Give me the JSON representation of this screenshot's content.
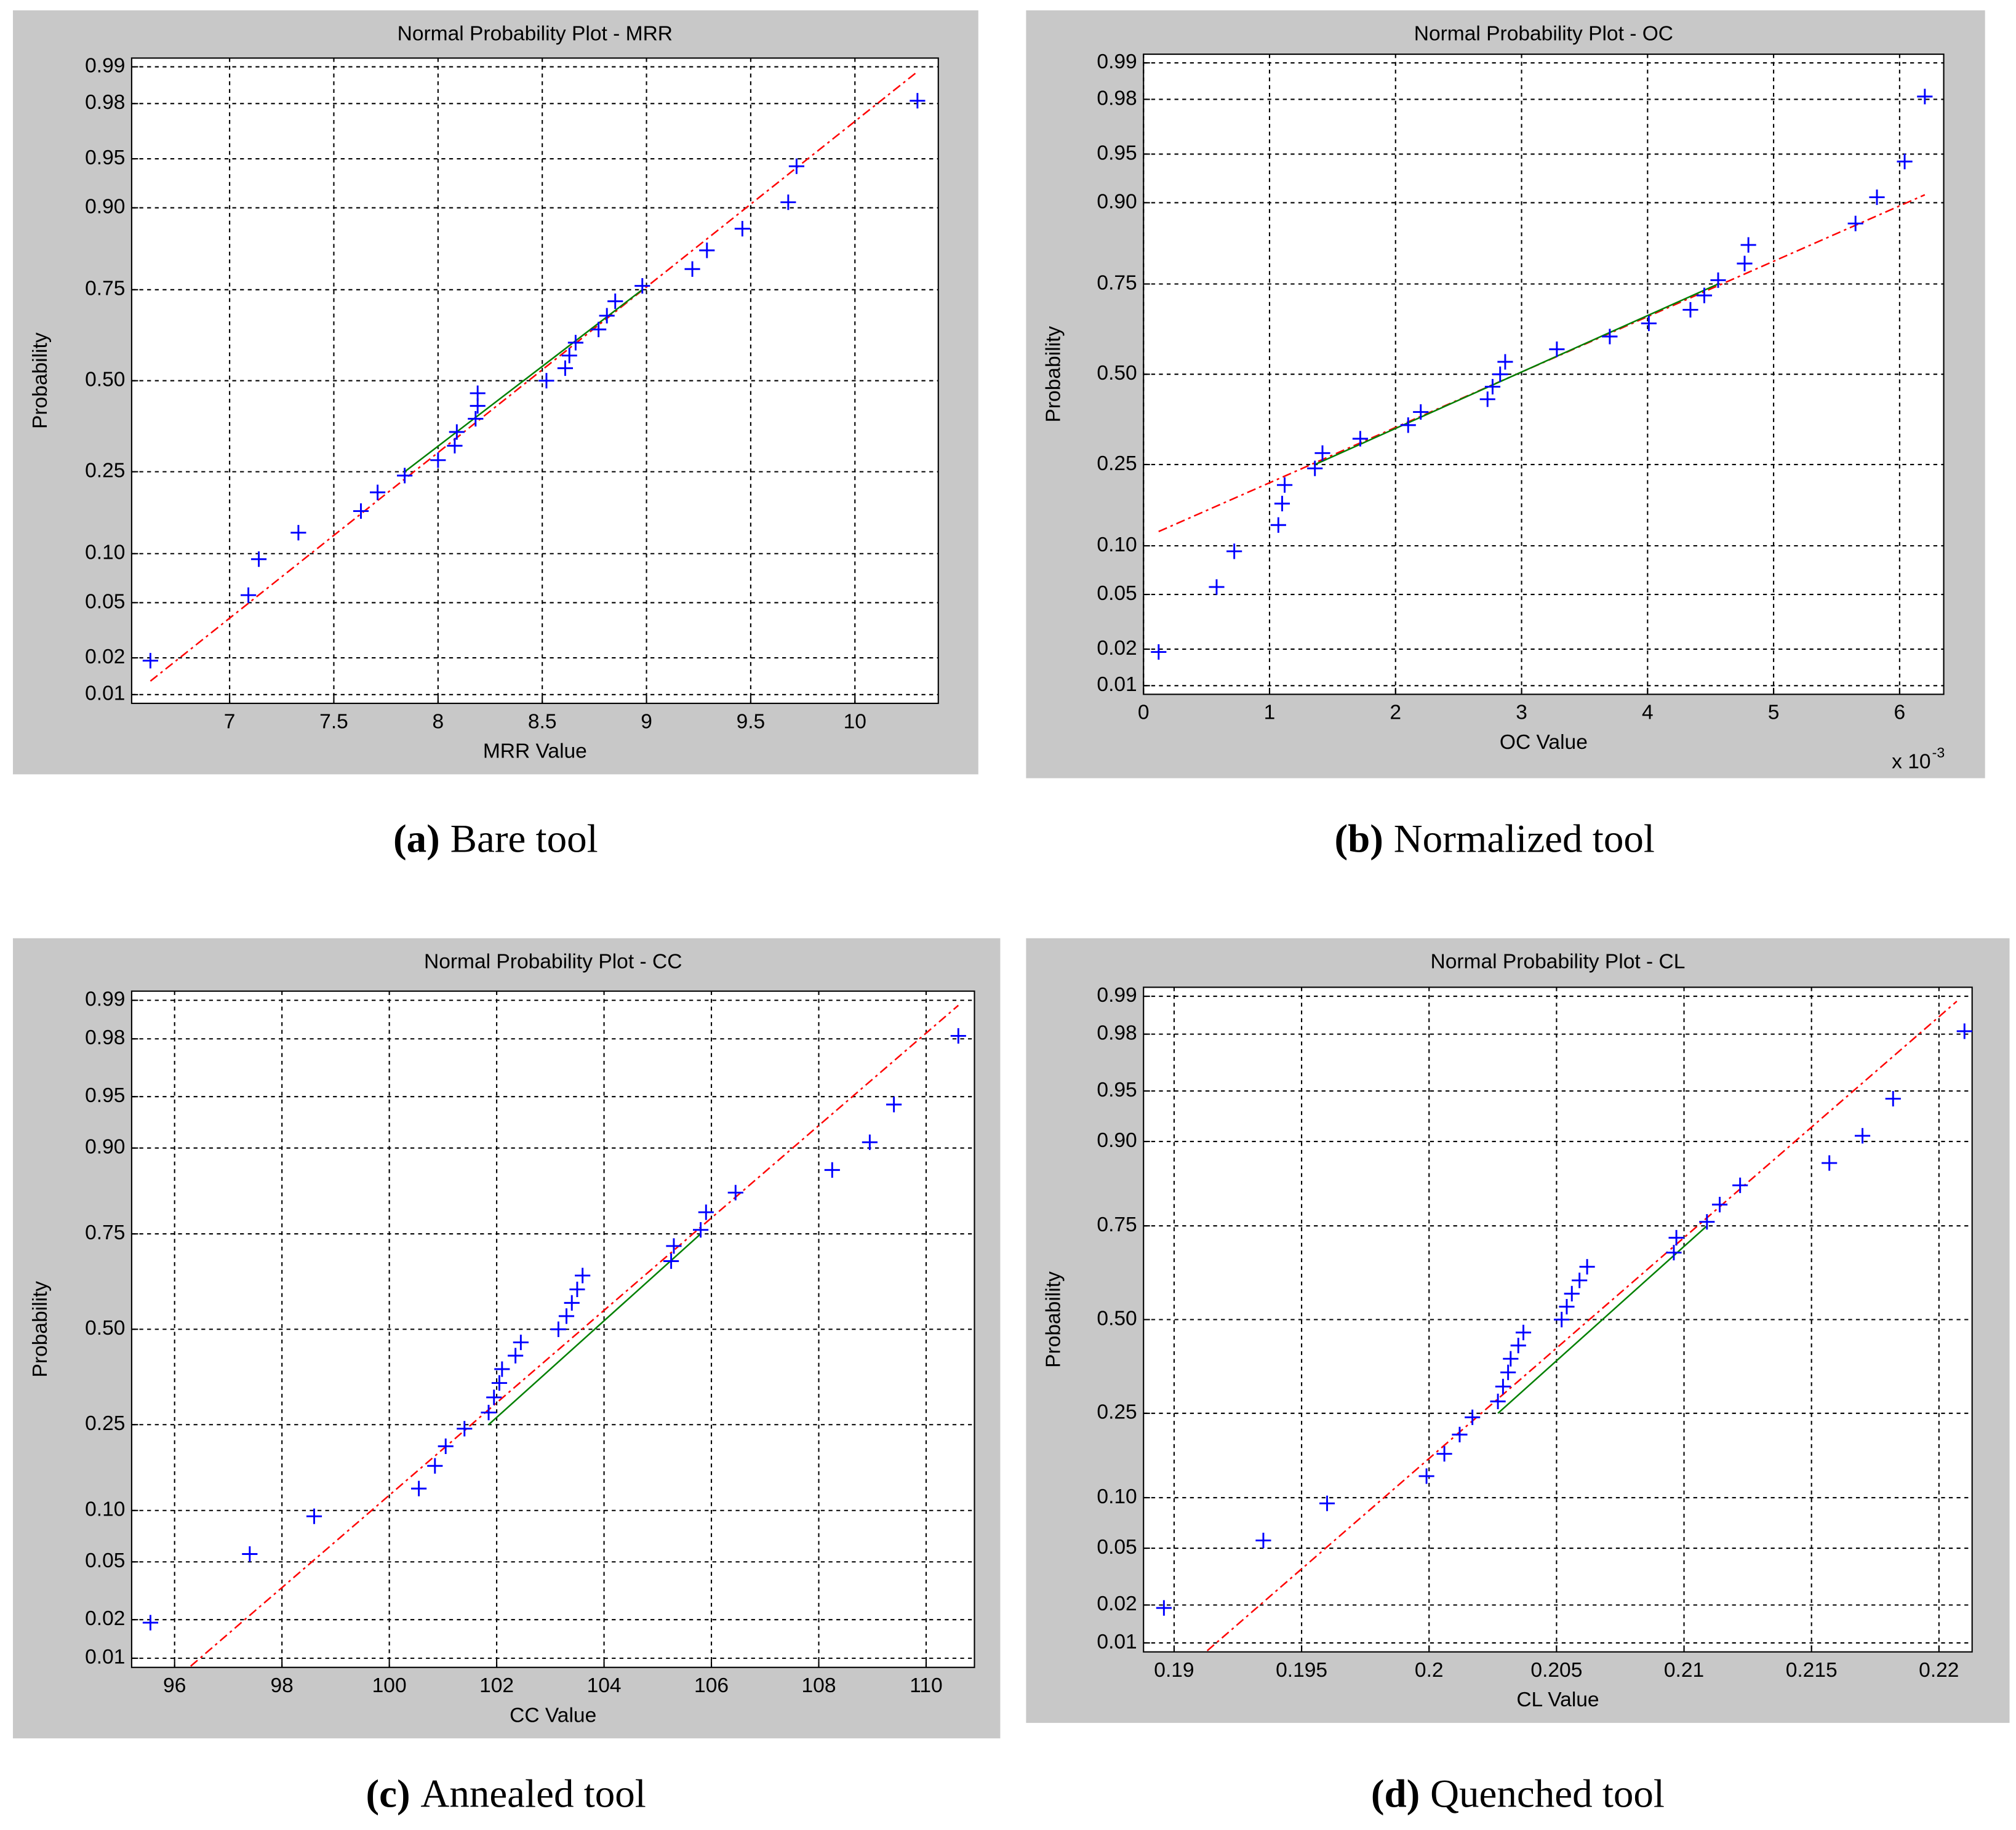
{
  "chart_data": [
    {
      "type": "probability",
      "title": "Normal Probability Plot - MRR",
      "xlabel": "MRR Value",
      "ylabel": "Probability",
      "caption_label": "(a)",
      "caption": "Bare tool",
      "x": [
        6.62,
        7.09,
        7.14,
        7.33,
        7.63,
        7.71,
        7.84,
        8.0,
        8.08,
        8.09,
        8.18,
        8.19,
        8.19,
        8.52,
        8.61,
        8.63,
        8.66,
        8.77,
        8.81,
        8.85,
        8.98,
        9.22,
        9.29,
        9.46,
        9.68,
        9.72,
        10.3
      ],
      "values": [
        0.019,
        0.056,
        0.093,
        0.13,
        0.167,
        0.204,
        0.241,
        0.278,
        0.315,
        0.352,
        0.389,
        0.426,
        0.463,
        0.5,
        0.537,
        0.574,
        0.611,
        0.648,
        0.685,
        0.722,
        0.759,
        0.796,
        0.833,
        0.87,
        0.907,
        0.944,
        0.981
      ],
      "color": "#0000ff",
      "reference_line": {
        "x": [
          6.62,
          10.3
        ],
        "values": [
          0.013,
          0.989
        ],
        "color": "#ff0000"
      },
      "quartile_line": {
        "x": [
          7.84,
          8.98
        ],
        "values": [
          0.25,
          0.75
        ],
        "color": "#008000"
      },
      "xlim": [
        6.53,
        10.4
      ],
      "xticks": [
        7,
        7.5,
        8,
        8.5,
        9,
        9.5,
        10
      ],
      "yscale": "normal",
      "ylim": [
        0.0084,
        0.9916
      ],
      "yticks": [
        0.01,
        0.02,
        0.05,
        {
          "value": 0.1,
          "label": "0.10"
        },
        0.25,
        {
          "value": 0.5,
          "label": "0.50"
        },
        0.75,
        {
          "value": 0.9,
          "label": "0.90"
        },
        0.95,
        0.98,
        0.99
      ],
      "grid": true
    },
    {
      "type": "probability",
      "title": "Normal Probability Plot - OC",
      "xlabel": "OC Value",
      "ylabel": "Probability",
      "caption_label": "(b)",
      "caption": "Normalized tool",
      "x_scale_label": "x 10",
      "x_scale_exponent": "-3",
      "x": [
        0.12,
        0.58,
        0.72,
        1.07,
        1.1,
        1.12,
        1.36,
        1.42,
        1.72,
        2.1,
        2.2,
        2.73,
        2.77,
        2.83,
        2.87,
        3.28,
        3.7,
        4.01,
        4.34,
        4.45,
        4.56,
        4.77,
        4.8,
        5.65,
        5.82,
        6.04,
        6.2
      ],
      "values": [
        0.019,
        0.056,
        0.093,
        0.13,
        0.167,
        0.204,
        0.241,
        0.278,
        0.315,
        0.352,
        0.389,
        0.426,
        0.463,
        0.5,
        0.537,
        0.574,
        0.611,
        0.648,
        0.685,
        0.722,
        0.759,
        0.796,
        0.833,
        0.87,
        0.907,
        0.944,
        0.981
      ],
      "color": "#0000ff",
      "reference_line": {
        "x": [
          0.12,
          6.2
        ],
        "values": [
          0.12,
          0.91
        ],
        "color": "#ff0000"
      },
      "quartile_line": {
        "x": [
          1.36,
          4.56
        ],
        "values": [
          0.25,
          0.75
        ],
        "color": "#008000"
      },
      "xlim": [
        0,
        6.35
      ],
      "xticks": [
        0,
        1,
        2,
        3,
        4,
        5,
        6
      ],
      "yscale": "normal",
      "ylim": [
        0.0084,
        0.9916
      ],
      "yticks": [
        0.01,
        0.02,
        0.05,
        {
          "value": 0.1,
          "label": "0.10"
        },
        0.25,
        {
          "value": 0.5,
          "label": "0.50"
        },
        0.75,
        {
          "value": 0.9,
          "label": "0.90"
        },
        0.95,
        0.98,
        0.99
      ],
      "grid": true
    },
    {
      "type": "probability",
      "title": "Normal Probability Plot - CC",
      "xlabel": "CC Value",
      "ylabel": "Probability",
      "caption_label": "(c)",
      "caption": "Annealed tool",
      "x": [
        95.55,
        97.4,
        98.6,
        100.55,
        100.85,
        101.05,
        101.4,
        101.85,
        101.95,
        102.05,
        102.1,
        102.35,
        102.45,
        103.15,
        103.3,
        103.4,
        103.5,
        103.6,
        105.25,
        105.3,
        105.8,
        105.9,
        106.45,
        108.25,
        108.95,
        109.4,
        110.6
      ],
      "values": [
        0.019,
        0.056,
        0.093,
        0.13,
        0.167,
        0.204,
        0.241,
        0.278,
        0.315,
        0.352,
        0.389,
        0.426,
        0.463,
        0.5,
        0.537,
        0.574,
        0.611,
        0.648,
        0.685,
        0.722,
        0.759,
        0.796,
        0.833,
        0.87,
        0.907,
        0.944,
        0.981
      ],
      "color": "#0000ff",
      "reference_line": {
        "x": [
          96.3,
          110.6
        ],
        "values": [
          0.0086,
          0.989
        ],
        "color": "#ff0000"
      },
      "quartile_line": {
        "x": [
          101.85,
          105.8
        ],
        "values": [
          0.25,
          0.75
        ],
        "color": "#008000"
      },
      "xlim": [
        95.2,
        110.9
      ],
      "xticks": [
        96,
        98,
        100,
        102,
        104,
        106,
        108,
        110
      ],
      "yscale": "normal",
      "ylim": [
        0.0084,
        0.9916
      ],
      "yticks": [
        0.01,
        0.02,
        0.05,
        {
          "value": 0.1,
          "label": "0.10"
        },
        0.25,
        {
          "value": 0.5,
          "label": "0.50"
        },
        0.75,
        {
          "value": 0.9,
          "label": "0.90"
        },
        0.95,
        0.98,
        0.99
      ],
      "grid": true
    },
    {
      "type": "probability",
      "title": "Normal Probability Plot - CL",
      "xlabel": "CL Value",
      "ylabel": "Probability",
      "caption_label": "(d)",
      "caption": "Quenched tool",
      "x": [
        0.1896,
        0.1935,
        0.196,
        0.1999,
        0.2006,
        0.2012,
        0.2017,
        0.2027,
        0.2029,
        0.2031,
        0.2032,
        0.2035,
        0.2037,
        0.2052,
        0.2054,
        0.2056,
        0.2059,
        0.2062,
        0.2096,
        0.2097,
        0.2109,
        0.2114,
        0.2122,
        0.2157,
        0.217,
        0.2182,
        0.221
      ],
      "values": [
        0.019,
        0.056,
        0.093,
        0.13,
        0.167,
        0.204,
        0.241,
        0.278,
        0.315,
        0.352,
        0.389,
        0.426,
        0.463,
        0.5,
        0.537,
        0.574,
        0.611,
        0.648,
        0.685,
        0.722,
        0.759,
        0.796,
        0.833,
        0.87,
        0.907,
        0.944,
        0.981
      ],
      "color": "#0000ff",
      "reference_line": {
        "x": [
          0.1913,
          0.2207
        ],
        "values": [
          0.0086,
          0.989
        ],
        "color": "#ff0000"
      },
      "quartile_line": {
        "x": [
          0.2027,
          0.2109
        ],
        "values": [
          0.25,
          0.75
        ],
        "color": "#008000"
      },
      "xlim": [
        0.1888,
        0.2213
      ],
      "xticks": [
        0.19,
        0.195,
        0.2,
        0.205,
        0.21,
        0.215,
        0.22
      ],
      "yscale": "normal",
      "ylim": [
        0.0084,
        0.9916
      ],
      "yticks": [
        0.01,
        0.02,
        0.05,
        {
          "value": 0.1,
          "label": "0.10"
        },
        0.25,
        {
          "value": 0.5,
          "label": "0.50"
        },
        0.75,
        {
          "value": 0.9,
          "label": "0.90"
        },
        0.95,
        0.98,
        0.99
      ],
      "grid": true
    }
  ]
}
